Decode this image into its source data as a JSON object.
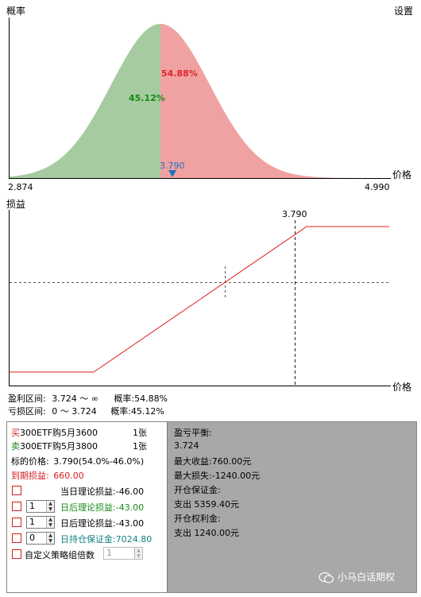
{
  "top_chart": {
    "ylabel": "概率",
    "settings_label": "设置",
    "xlabel": "价格",
    "x_min_label": "2.874",
    "x_max_label": "4.990",
    "left_pct": "45.12%",
    "right_pct": "54.88%",
    "marker_label": "3.790",
    "colors": {
      "left_fill": "#a6cba0",
      "right_fill": "#f0a2a2",
      "left_text": "#168a16",
      "right_text": "#e0242a",
      "marker": "#2272c3"
    }
  },
  "pl_chart": {
    "ylabel": "损益",
    "xlabel": "价格",
    "marker_label": "3.790",
    "line_color": "#e02020"
  },
  "summary": {
    "profit_range_label": "盈利区间:",
    "profit_range_value": "3.724 ～ ∞",
    "profit_prob_label": "概率:",
    "profit_prob_value": "54.88%",
    "loss_range_label": "亏损区间:",
    "loss_range_value": "0 ～ 3.724",
    "loss_prob_label": "概率:",
    "loss_prob_value": "45.12%"
  },
  "legs": [
    {
      "side": "买",
      "name": "300ETF购5月3600",
      "qty": "1张",
      "color": "#d21f1f"
    },
    {
      "side": "卖",
      "name": "300ETF购5月3800",
      "qty": "1张",
      "color": "#1a8a1a"
    }
  ],
  "underlying": {
    "label": "标的价格:",
    "value": "3.790(54.0%-46.0%)"
  },
  "expiry_pl": {
    "label": "到期损益:",
    "value": "660.00"
  },
  "options": [
    {
      "label": "当日理论损益:",
      "value": "-46.00",
      "stepper": "",
      "color": "#000000"
    },
    {
      "label": "日后理论损益:",
      "value": "-43.00",
      "stepper": "1",
      "color": "#1a8a1a"
    },
    {
      "label": "日后理论损益:",
      "value": "-43.00",
      "stepper": "1",
      "color": "#000000"
    },
    {
      "label": "日持仓保证金:",
      "value": "7024.80",
      "stepper": "0",
      "color": "#128080"
    }
  ],
  "custom_multiplier": {
    "label": "自定义策略组倍数",
    "value": "1"
  },
  "right_panel": {
    "breakeven_label": "盈亏平衡:",
    "breakeven_value": "3.724",
    "max_profit_label": "最大收益:",
    "max_profit_value": "760.00元",
    "max_loss_label": "最大损失:",
    "max_loss_value": "-1240.00元",
    "margin_label": "开仓保证金:",
    "margin_value": "支出 5359.40元",
    "premium_label": "开仓权利金:",
    "premium_value": "支出 1240.00元"
  },
  "watermark": {
    "text": "小马白话期权"
  }
}
